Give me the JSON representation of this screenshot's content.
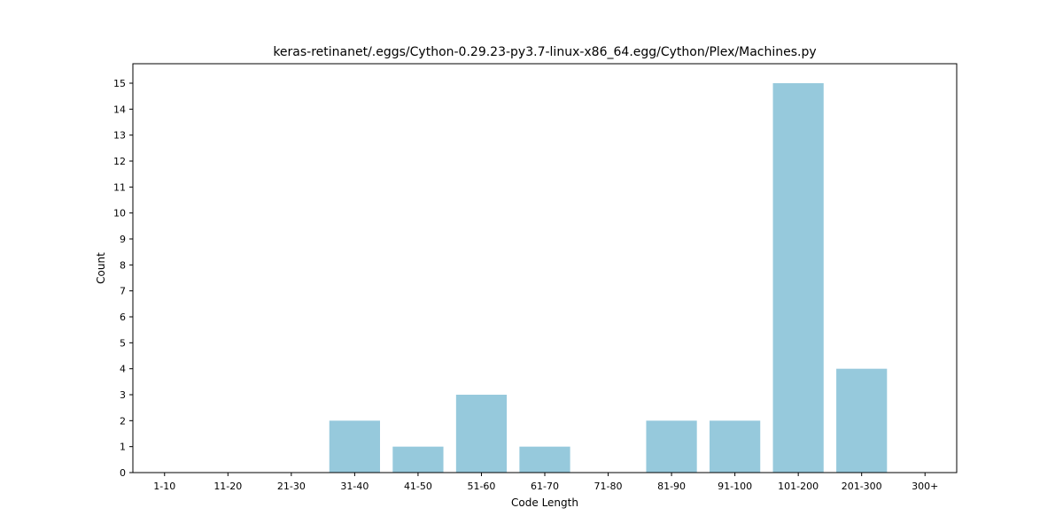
{
  "chart_data": {
    "type": "bar",
    "title": "keras-retinanet/.eggs/Cython-0.29.23-py3.7-linux-x86_64.egg/Cython/Plex/Machines.py",
    "xlabel": "Code Length",
    "ylabel": "Count",
    "categories": [
      "1-10",
      "11-20",
      "21-30",
      "31-40",
      "41-50",
      "51-60",
      "61-70",
      "71-80",
      "81-90",
      "91-100",
      "101-200",
      "201-300",
      "300+"
    ],
    "values": [
      0,
      0,
      0,
      2,
      1,
      3,
      1,
      0,
      2,
      2,
      15,
      4,
      0
    ],
    "ylim": [
      0,
      15.75
    ],
    "yticks": [
      0,
      1,
      2,
      3,
      4,
      5,
      6,
      7,
      8,
      9,
      10,
      11,
      12,
      13,
      14,
      15
    ],
    "bar_color": "#96c9dc",
    "grid": false,
    "legend": "none"
  }
}
